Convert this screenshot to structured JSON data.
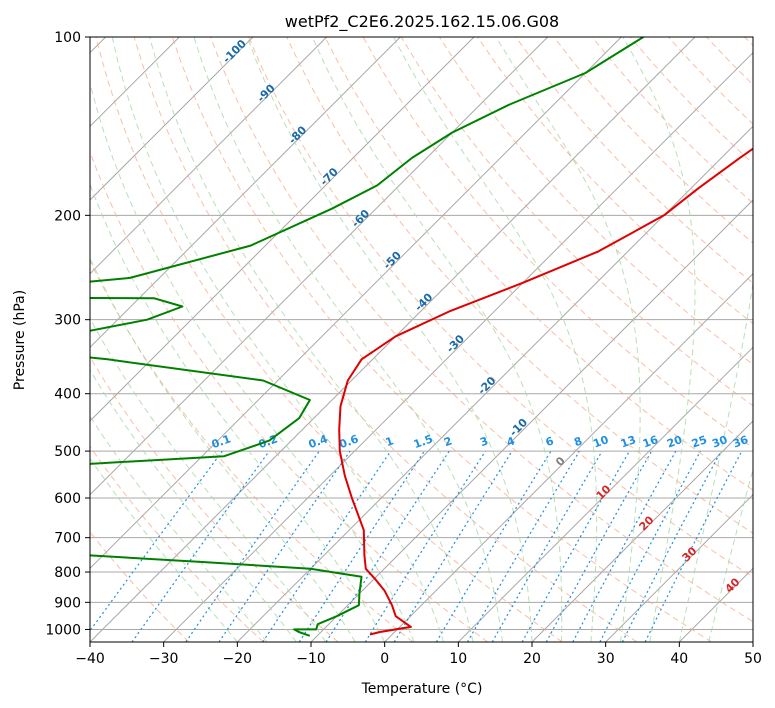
{
  "chart_data": {
    "type": "line",
    "title": "wetPf2_C2E6.2025.162.15.06.G08",
    "xlabel": "Temperature (°C)",
    "ylabel": "Pressure (hPa)",
    "xlim": [
      -40,
      50
    ],
    "ylim": [
      1050,
      100
    ],
    "y_scale": "log",
    "skew": true,
    "x_ticks": [
      "−40",
      "−30",
      "−20",
      "−10",
      "0",
      "10",
      "20",
      "30",
      "40",
      "50"
    ],
    "y_ticks": [
      "100",
      "200",
      "300",
      "400",
      "500",
      "600",
      "700",
      "800",
      "900",
      "1000"
    ],
    "grid": true,
    "colors": {
      "temperature": "#e00000",
      "dewpoint": "#008000",
      "isotherm": "#a8a8a8",
      "dry_adiabat": "#f4a582",
      "moist_adiabat": "#a6d8a6",
      "mixing_ratio": "#1f8fe0",
      "moist_label": "#1a6aa8",
      "dry_label": "#d62728",
      "zero_label": "#808080",
      "tan_curve": "#d9c2a8"
    },
    "series": [
      {
        "name": "",
        "role": "temperature",
        "points": [
          [
            -12.0,
            100
          ],
          [
            -13.5,
            120
          ],
          [
            -15.5,
            140
          ],
          [
            -17.5,
            160
          ],
          [
            -19.0,
            180
          ],
          [
            -20.0,
            200
          ],
          [
            -24.0,
            230
          ],
          [
            -30.0,
            260
          ],
          [
            -36.0,
            290
          ],
          [
            -40.0,
            320
          ],
          [
            -41.5,
            350
          ],
          [
            -40.5,
            380
          ],
          [
            -38.0,
            420
          ],
          [
            -35.0,
            460
          ],
          [
            -32.0,
            500
          ],
          [
            -28.0,
            550
          ],
          [
            -24.0,
            600
          ],
          [
            -18.0,
            680
          ],
          [
            -14.5,
            750
          ],
          [
            -12.5,
            790
          ],
          [
            -10.0,
            820
          ],
          [
            -7.0,
            860
          ],
          [
            -4.0,
            910
          ],
          [
            -2.0,
            950
          ],
          [
            1.5,
            990
          ],
          [
            -2.0,
            1010
          ],
          [
            -3.0,
            1020
          ]
        ]
      },
      {
        "name": "",
        "role": "dewpoint",
        "points": [
          [
            -47,
            100
          ],
          [
            -50,
            115
          ],
          [
            -56,
            130
          ],
          [
            -60,
            145
          ],
          [
            -62,
            160
          ],
          [
            -63,
            178
          ],
          [
            -66,
            195
          ],
          [
            -72,
            225
          ],
          [
            -84,
            255
          ],
          [
            -110,
            275
          ],
          [
            -78,
            276
          ],
          [
            -73,
            285
          ],
          [
            -76,
            300
          ],
          [
            -92,
            335
          ],
          [
            -76,
            350
          ],
          [
            -52,
            380
          ],
          [
            -43,
            410
          ],
          [
            -42,
            440
          ],
          [
            -43,
            480
          ],
          [
            -47,
            510
          ],
          [
            -80,
            540
          ],
          [
            -84,
            555
          ],
          [
            -74,
            600
          ],
          [
            -78,
            600
          ],
          [
            -98,
            630
          ],
          [
            -74,
            650
          ],
          [
            -58,
            690
          ],
          [
            -54,
            715
          ],
          [
            -56,
            745
          ],
          [
            -35,
            770
          ],
          [
            -20,
            790
          ],
          [
            -12,
            815
          ],
          [
            -10,
            870
          ],
          [
            -8.5,
            910
          ],
          [
            -10,
            950
          ],
          [
            -11.5,
            980
          ],
          [
            -11.0,
            1000
          ],
          [
            -14.0,
            1000
          ],
          [
            -13.0,
            1010
          ],
          [
            -11.0,
            1025
          ]
        ]
      }
    ],
    "moist_adiabat_labels": [
      "-100",
      "-90",
      "-80",
      "-70",
      "-60",
      "-50",
      "-40",
      "-30",
      "-20",
      "-10"
    ],
    "mixing_ratio_labels": [
      "0.1",
      "0.2",
      "0.4",
      "0.6",
      "1",
      "1.5",
      "2",
      "3",
      "4",
      "6",
      "8",
      "10",
      "13",
      "16",
      "20",
      "25",
      "30",
      "36"
    ],
    "moist_annotations": [
      "0",
      "10",
      "20",
      "30",
      "40"
    ]
  }
}
